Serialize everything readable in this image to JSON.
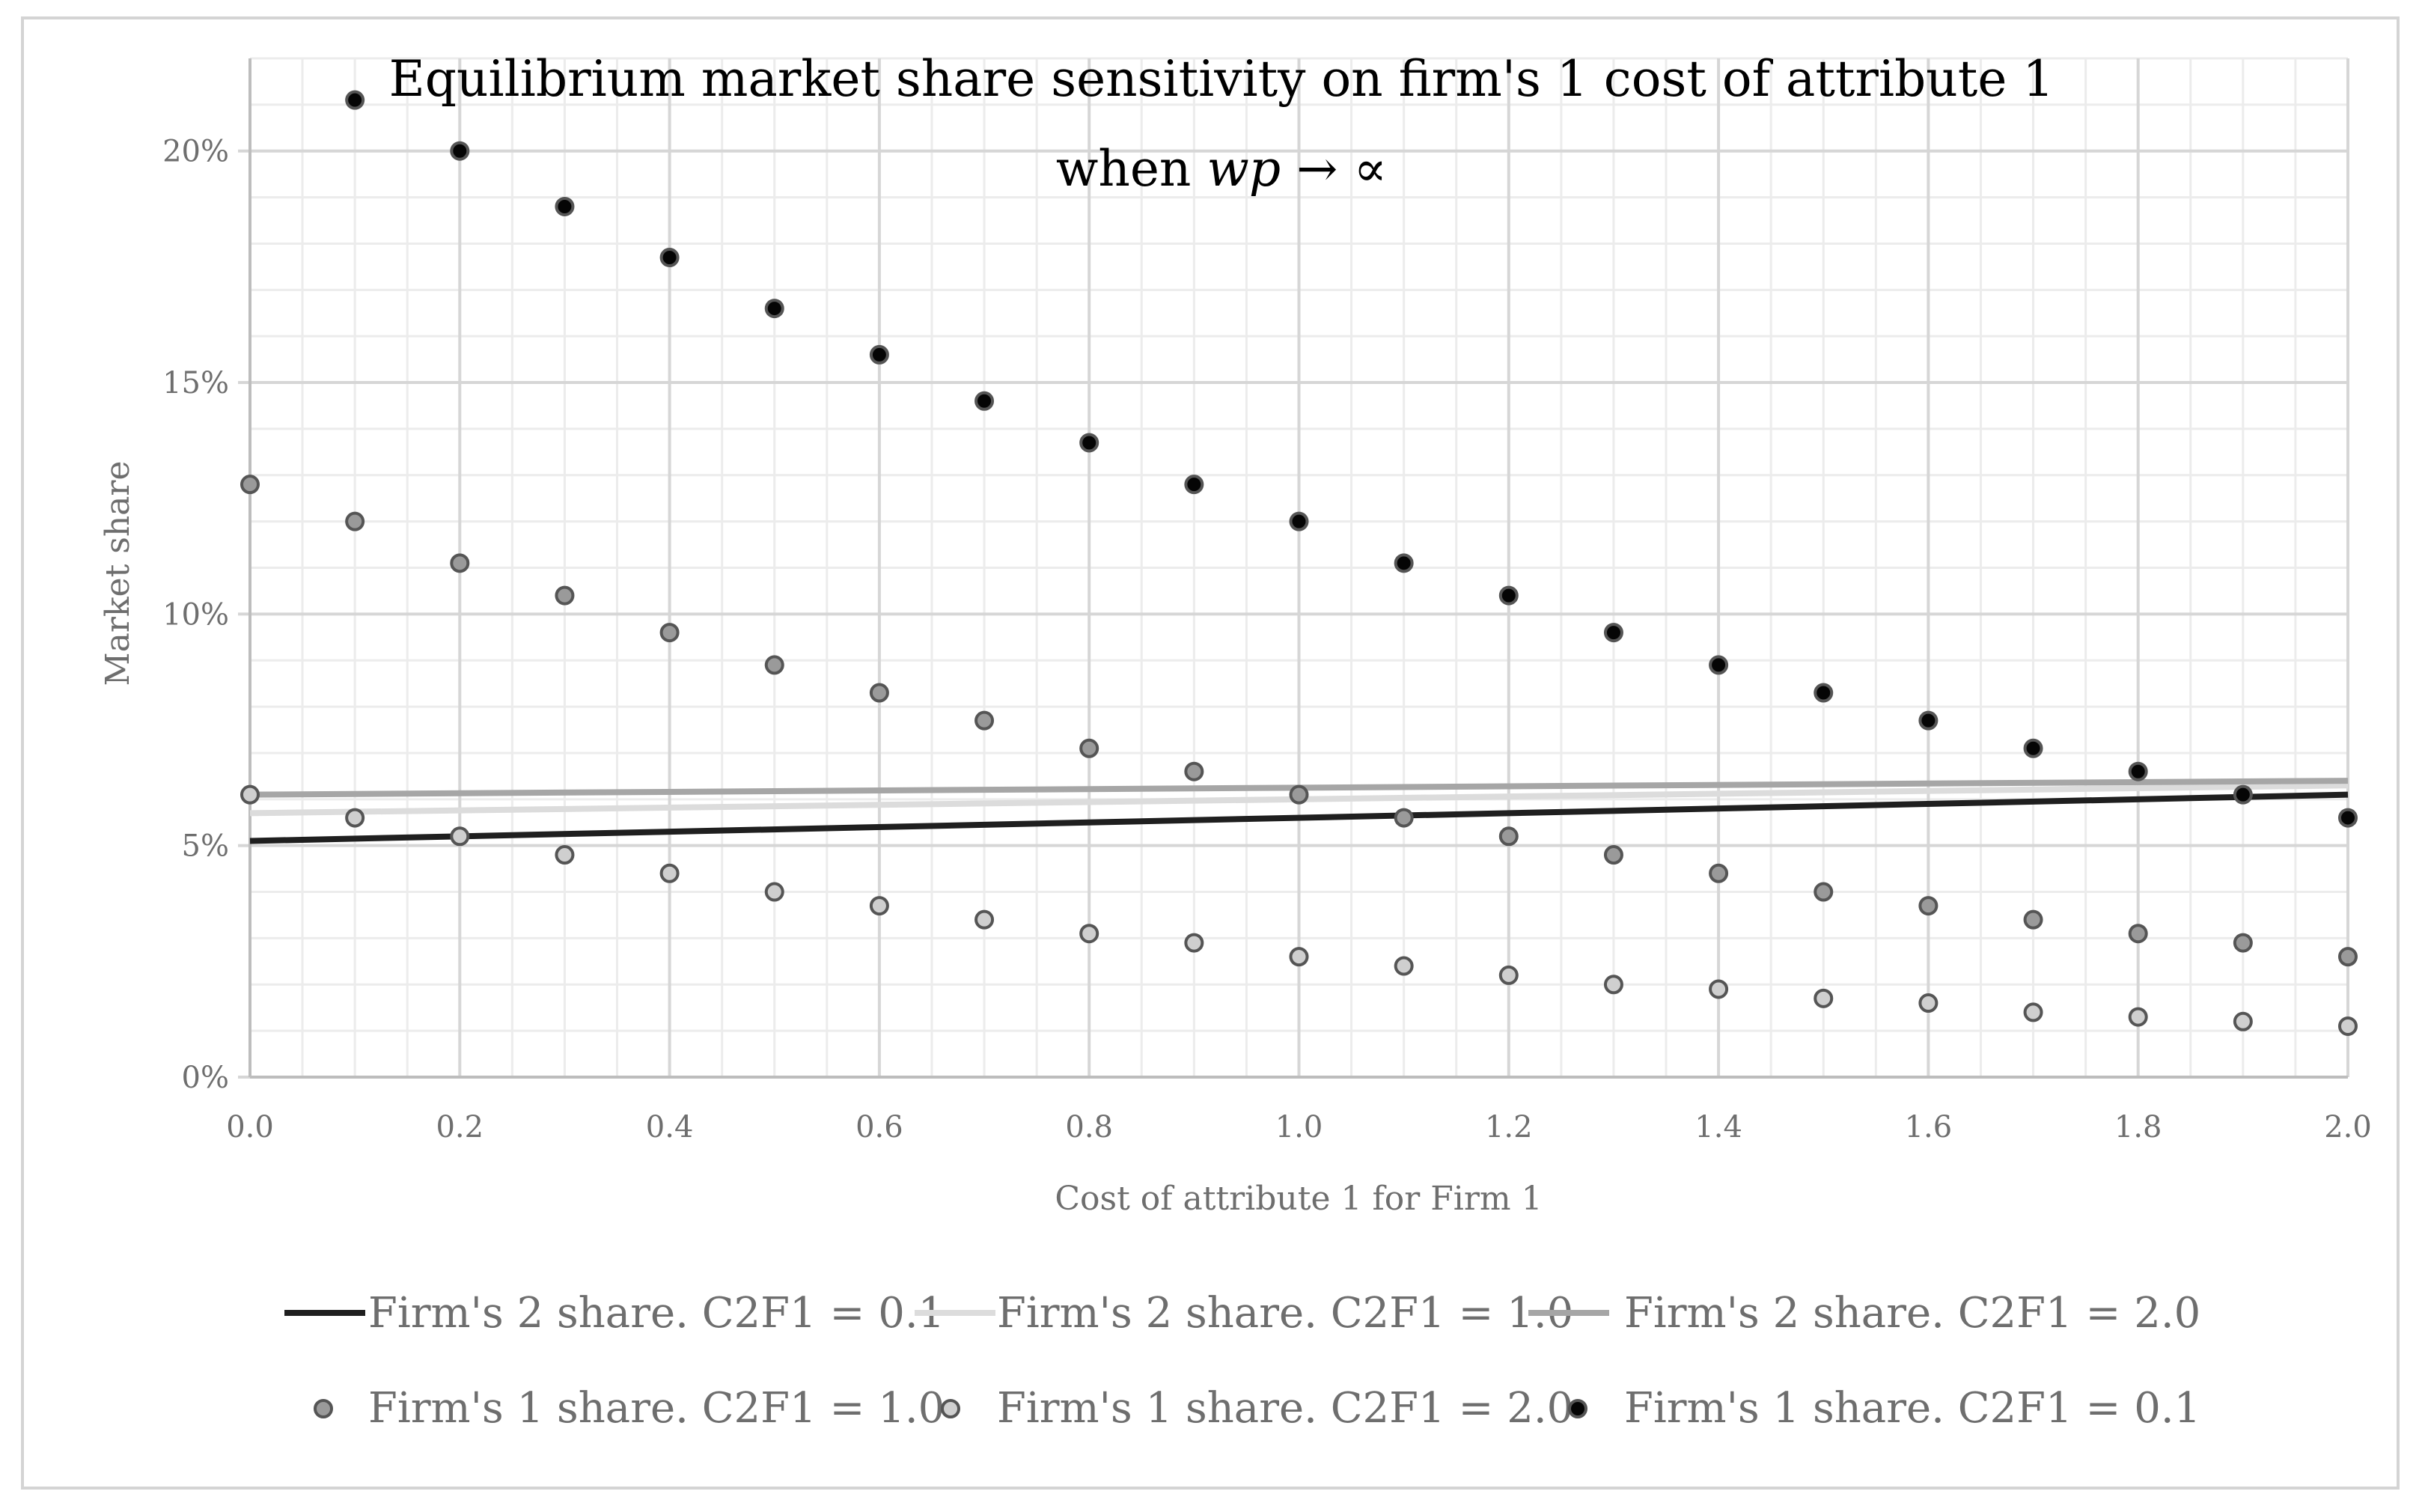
{
  "chart_data": {
    "type": "scatter",
    "title": "Equilibrium market share sensitivity on firm's 1 cost of attribute 1",
    "subtitle": {
      "prefix": "when ",
      "var": "wp",
      "arrow": " → ",
      "symbol": "∝"
    },
    "xlabel": "Cost of attribute 1 for Firm 1",
    "ylabel": "Market share",
    "xlim": [
      0,
      2.0
    ],
    "ylim": [
      0,
      0.22
    ],
    "x_ticks": [
      {
        "value": 0.0,
        "label": "0.0"
      },
      {
        "value": 0.2,
        "label": "0.2"
      },
      {
        "value": 0.4,
        "label": "0.4"
      },
      {
        "value": 0.6,
        "label": "0.6"
      },
      {
        "value": 0.8,
        "label": "0.8"
      },
      {
        "value": 1.0,
        "label": "1.0"
      },
      {
        "value": 1.2,
        "label": "1.2"
      },
      {
        "value": 1.4,
        "label": "1.4"
      },
      {
        "value": 1.6,
        "label": "1.6"
      },
      {
        "value": 1.8,
        "label": "1.8"
      },
      {
        "value": 2.0,
        "label": "2.0"
      }
    ],
    "y_ticks": [
      {
        "value": 0.0,
        "label": "0%"
      },
      {
        "value": 0.05,
        "label": "5%"
      },
      {
        "value": 0.1,
        "label": "10%"
      },
      {
        "value": 0.15,
        "label": "15%"
      },
      {
        "value": 0.2,
        "label": "20%"
      }
    ],
    "grid": true,
    "x": [
      0.0,
      0.1,
      0.2,
      0.3,
      0.4,
      0.5,
      0.6,
      0.7,
      0.8,
      0.9,
      1.0,
      1.1,
      1.2,
      1.3,
      1.4,
      1.5,
      1.6,
      1.7,
      1.8,
      1.9,
      2.0
    ],
    "line_series": [
      {
        "name": "Firm's 2 share. C2F1 = 0.1",
        "color": "#1f1f1f",
        "start": [
          0.0,
          0.051
        ],
        "end": [
          2.0,
          0.061
        ]
      },
      {
        "name": "Firm's 2 share. C2F1 = 1.0",
        "color": "#dcdcdc",
        "start": [
          0.0,
          0.057
        ],
        "end": [
          2.0,
          0.063
        ]
      },
      {
        "name": "Firm's 2 share. C2F1 = 2.0",
        "color": "#a6a6a6",
        "start": [
          0.0,
          0.061
        ],
        "end": [
          2.0,
          0.064
        ]
      }
    ],
    "point_series": [
      {
        "name": "Firm's 1 share. C2F1 = 1.0",
        "color": "#9a9a9a",
        "values": [
          0.128,
          0.12,
          0.111,
          0.104,
          0.096,
          0.089,
          0.083,
          0.077,
          0.071,
          0.066,
          0.061,
          0.056,
          0.052,
          0.048,
          0.044,
          0.04,
          0.037,
          0.034,
          0.031,
          0.029,
          0.026
        ]
      },
      {
        "name": "Firm's 1 share. C2F1 = 2.0",
        "color": "#cfcfcf",
        "values": [
          0.061,
          0.056,
          0.052,
          0.048,
          0.044,
          0.04,
          0.037,
          0.034,
          0.031,
          0.029,
          0.026,
          0.024,
          0.022,
          0.02,
          0.019,
          0.017,
          0.016,
          0.014,
          0.013,
          0.012,
          0.011
        ]
      },
      {
        "name": "Firm's 1 share. C2F1 = 0.1",
        "color": "#050505",
        "values": [
          null,
          0.211,
          0.2,
          0.188,
          0.177,
          0.166,
          0.156,
          0.146,
          0.137,
          0.128,
          0.12,
          0.111,
          0.104,
          0.096,
          0.089,
          0.083,
          0.077,
          0.071,
          0.066,
          0.061,
          0.056
        ]
      }
    ],
    "legend": {
      "placement": "bottom",
      "rows": [
        [
          "Firm's 2 share. C2F1 = 0.1",
          "Firm's 2 share. C2F1 = 1.0",
          "Firm's 2 share. C2F1 = 2.0"
        ],
        [
          "Firm's 1 share. C2F1 = 1.0",
          "Firm's 1 share. C2F1 = 2.0",
          "Firm's 1 share. C2F1 = 0.1"
        ]
      ]
    },
    "colors": {
      "background": "#ffffff",
      "grid_major": "#d6d6d6",
      "grid_minor": "#ececec",
      "axis_text": "#6e6e6e",
      "title_text": "#000000",
      "point_edge": "#555555"
    }
  }
}
